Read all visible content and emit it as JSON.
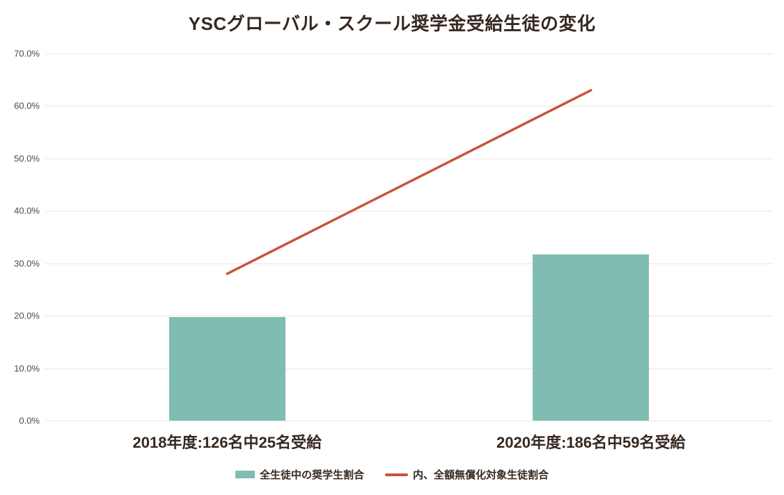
{
  "chart_data": {
    "type": "bar",
    "subtype": "combo-bar-line",
    "title": "YSCグローバル・スクール奨学金受給生徒の変化",
    "categories": [
      "2018年度:126名中25名受給",
      "2020年度:186名中59名受給"
    ],
    "series": [
      {
        "name": "全生徒中の奨学生割合",
        "render": "bar",
        "values": [
          19.8,
          31.7
        ],
        "color": "#7fbcb2"
      },
      {
        "name": "内、全額無償化対象生徒割合",
        "render": "line",
        "values": [
          28.0,
          63.0
        ],
        "color": "#c8543e"
      }
    ],
    "xlabel": "",
    "ylabel": "",
    "ylim": [
      0,
      70
    ],
    "y_ticks": [
      0,
      10,
      20,
      30,
      40,
      50,
      60,
      70
    ],
    "y_tick_labels": [
      "0.0%",
      "10.0%",
      "20.0%",
      "30.0%",
      "40.0%",
      "50.0%",
      "60.0%",
      "70.0%"
    ],
    "grid": true,
    "legend_position": "bottom"
  },
  "colors": {
    "title_text": "#36281f",
    "axis_tick_text": "#4e4a46",
    "gridline": "#ede4da",
    "bar_fill": "#7fbcb2",
    "line_stroke": "#c8543e",
    "background": "#ffffff"
  }
}
